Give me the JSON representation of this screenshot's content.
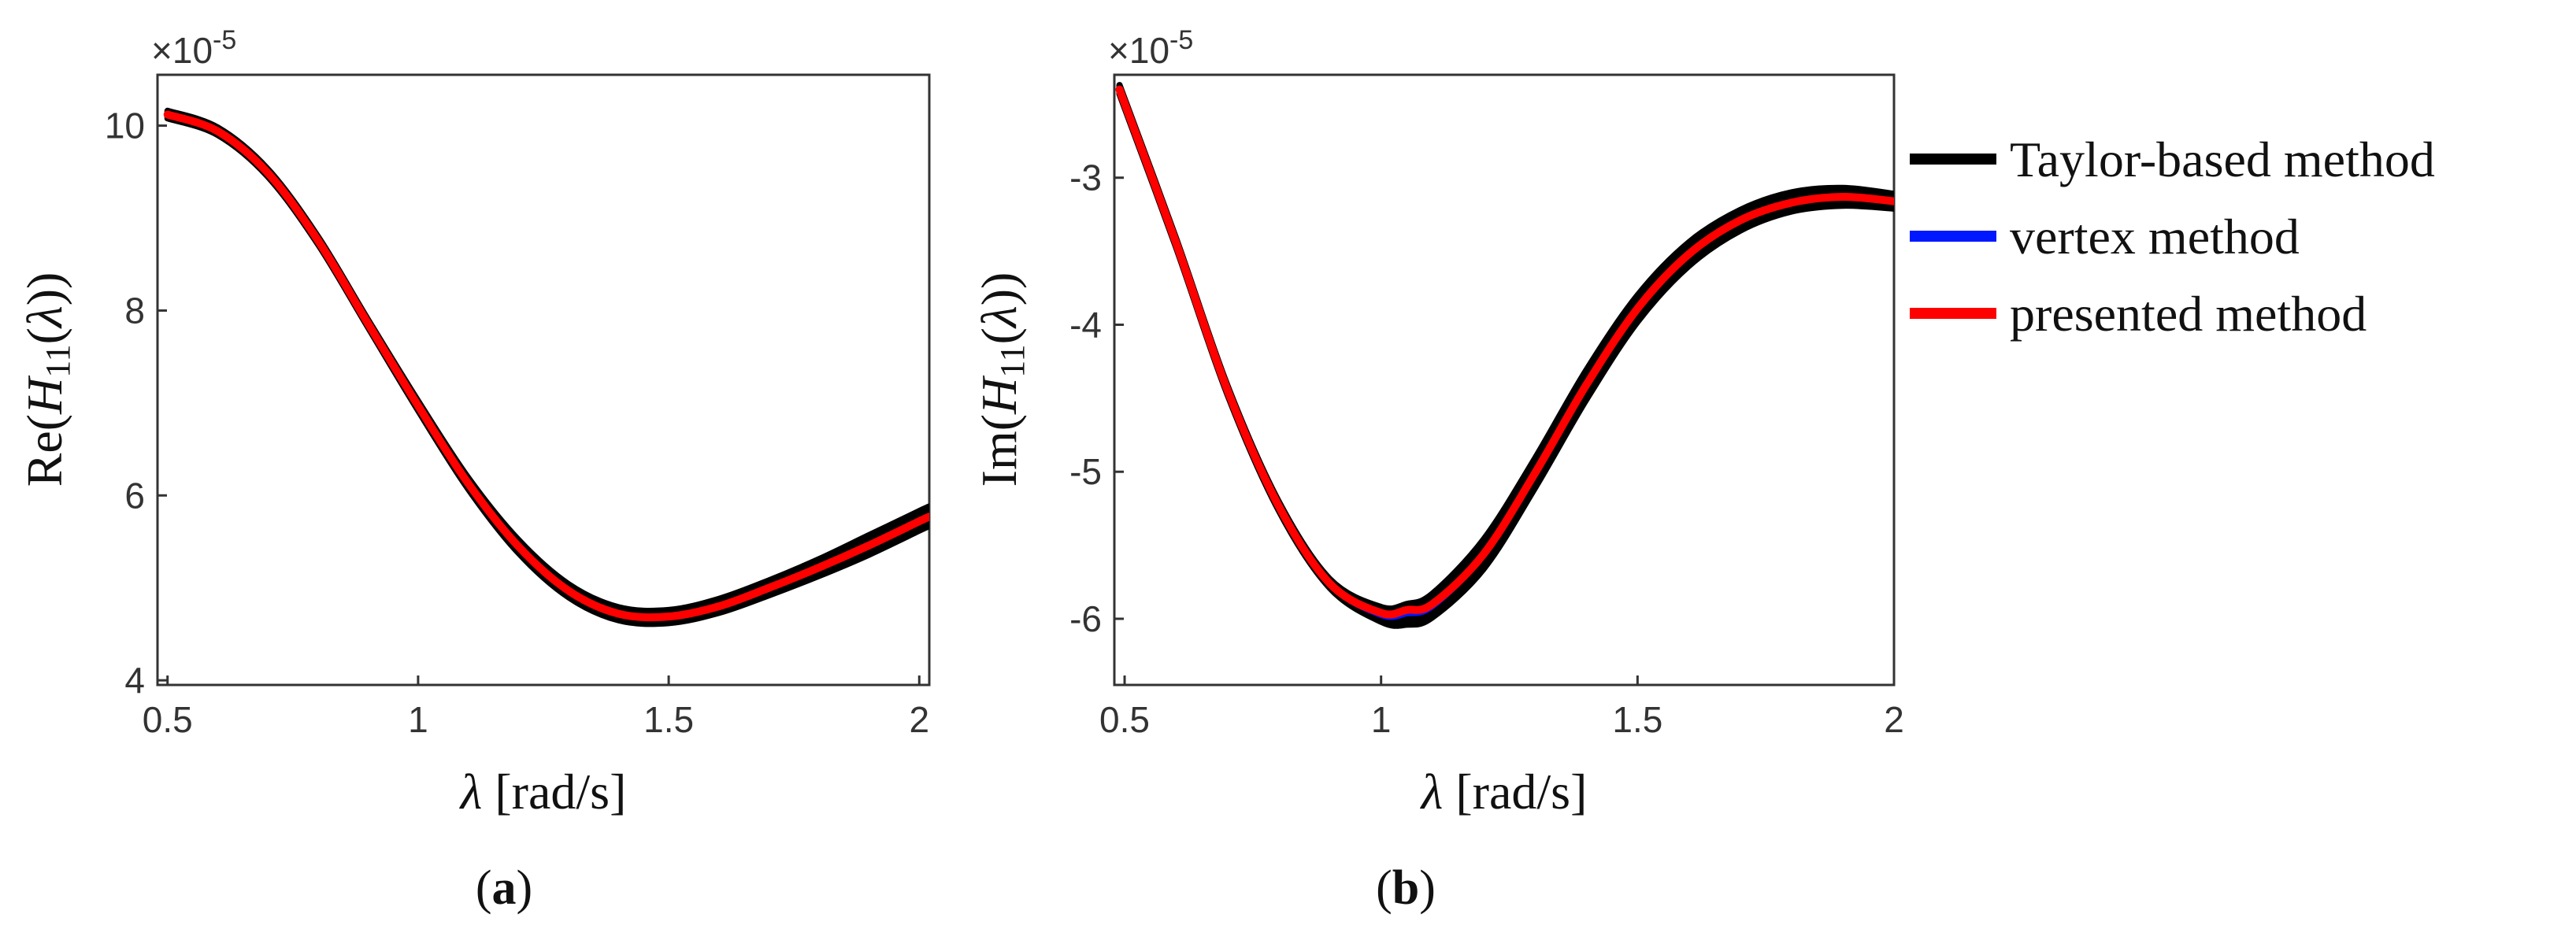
{
  "colors": {
    "taylor": "#000000",
    "vertex": "#0018ff",
    "presented": "#ff0000",
    "axis": "#333333"
  },
  "legend": [
    {
      "label": "Taylor-based method",
      "color": "#000000"
    },
    {
      "label": "vertex method",
      "color": "#0018ff"
    },
    {
      "label": "presented method",
      "color": "#ff0000"
    }
  ],
  "chart_data": [
    {
      "type": "line",
      "panel_label": "a",
      "title": "",
      "xlabel_symbol": "λ",
      "xlabel_unit": "[rad/s]",
      "ylabel_prefix": "Re(",
      "ylabel_var": "H",
      "ylabel_sub": "11",
      "ylabel_arg": "λ",
      "ylabel_suffix": "))",
      "y_multiplier": "×10",
      "y_exponent": "-5",
      "xlim": [
        0.48,
        2.02
      ],
      "ylim": [
        3.95,
        10.55
      ],
      "xticks": [
        "0.5",
        "1",
        "1.5",
        "2"
      ],
      "yticks": [
        "4",
        "6",
        "8",
        "10"
      ],
      "series": [
        {
          "name": "Taylor-based method",
          "x": [
            0.5,
            0.6,
            0.7,
            0.8,
            0.9,
            1.0,
            1.1,
            1.2,
            1.3,
            1.4,
            1.5,
            1.6,
            1.7,
            1.8,
            1.9,
            2.0,
            2.02
          ],
          "lower": [
            10.08,
            9.9,
            9.45,
            8.72,
            7.82,
            6.92,
            6.07,
            5.38,
            4.9,
            4.65,
            4.62,
            4.73,
            4.92,
            5.13,
            5.36,
            5.62,
            5.67
          ],
          "upper": [
            10.16,
            9.98,
            9.53,
            8.8,
            7.9,
            7.02,
            6.19,
            5.52,
            5.04,
            4.79,
            4.76,
            4.88,
            5.08,
            5.31,
            5.57,
            5.83,
            5.88
          ]
        },
        {
          "name": "vertex method",
          "x": [
            0.5,
            0.6,
            0.7,
            0.8,
            0.9,
            1.0,
            1.1,
            1.2,
            1.3,
            1.4,
            1.5,
            1.6,
            1.7,
            1.8,
            1.9,
            2.0,
            2.02
          ],
          "y": [
            10.12,
            9.94,
            9.49,
            8.76,
            7.86,
            6.97,
            6.13,
            5.45,
            4.97,
            4.72,
            4.69,
            4.8,
            5.0,
            5.22,
            5.46,
            5.72,
            5.77
          ]
        },
        {
          "name": "presented method",
          "x": [
            0.5,
            0.6,
            0.7,
            0.8,
            0.9,
            1.0,
            1.1,
            1.2,
            1.3,
            1.4,
            1.5,
            1.6,
            1.7,
            1.8,
            1.9,
            2.0,
            2.02
          ],
          "y": [
            10.12,
            9.94,
            9.49,
            8.76,
            7.86,
            6.97,
            6.13,
            5.45,
            4.97,
            4.72,
            4.69,
            4.8,
            5.0,
            5.22,
            5.46,
            5.72,
            5.77
          ]
        }
      ]
    },
    {
      "type": "line",
      "panel_label": "b",
      "title": "",
      "xlabel_symbol": "λ",
      "xlabel_unit": "[rad/s]",
      "ylabel_prefix": "Im(",
      "ylabel_var": "H",
      "ylabel_sub": "11",
      "ylabel_arg": "λ",
      "ylabel_suffix": "))",
      "y_multiplier": "×10",
      "y_exponent": "-5",
      "xlim": [
        0.48,
        2.0
      ],
      "ylim": [
        -6.45,
        -2.3
      ],
      "xticks": [
        "0.5",
        "1",
        "1.5",
        "2"
      ],
      "yticks": [
        "-6",
        "-5",
        "-4",
        "-3"
      ],
      "series": [
        {
          "name": "Taylor-based method",
          "x": [
            0.49,
            0.6,
            0.7,
            0.8,
            0.9,
            1.0,
            1.05,
            1.1,
            1.2,
            1.3,
            1.4,
            1.5,
            1.6,
            1.7,
            1.8,
            1.9,
            2.0
          ],
          "lower": [
            -2.43,
            -3.47,
            -4.47,
            -5.26,
            -5.79,
            -6.02,
            -6.04,
            -5.99,
            -5.66,
            -5.11,
            -4.51,
            -3.98,
            -3.6,
            -3.36,
            -3.23,
            -3.19,
            -3.21
          ],
          "upper": [
            -2.37,
            -3.41,
            -4.41,
            -5.2,
            -5.73,
            -5.92,
            -5.9,
            -5.83,
            -5.46,
            -4.91,
            -4.31,
            -3.8,
            -3.44,
            -3.22,
            -3.1,
            -3.07,
            -3.11
          ]
        },
        {
          "name": "vertex method",
          "x": [
            0.49,
            0.6,
            0.7,
            0.8,
            0.9,
            1.0,
            1.05,
            1.1,
            1.2,
            1.3,
            1.4,
            1.5,
            1.6,
            1.7,
            1.8,
            1.9,
            2.0
          ],
          "y": [
            -2.4,
            -3.44,
            -4.44,
            -5.23,
            -5.76,
            -5.97,
            -5.96,
            -5.91,
            -5.56,
            -5.01,
            -4.41,
            -3.89,
            -3.52,
            -3.29,
            -3.17,
            -3.13,
            -3.16
          ]
        },
        {
          "name": "presented method",
          "x": [
            0.49,
            0.6,
            0.7,
            0.8,
            0.9,
            1.0,
            1.05,
            1.1,
            1.2,
            1.3,
            1.4,
            1.5,
            1.6,
            1.7,
            1.8,
            1.9,
            2.0
          ],
          "y": [
            -2.4,
            -3.44,
            -4.44,
            -5.23,
            -5.76,
            -5.96,
            -5.94,
            -5.9,
            -5.56,
            -5.01,
            -4.41,
            -3.89,
            -3.52,
            -3.29,
            -3.17,
            -3.13,
            -3.16
          ]
        }
      ]
    }
  ]
}
